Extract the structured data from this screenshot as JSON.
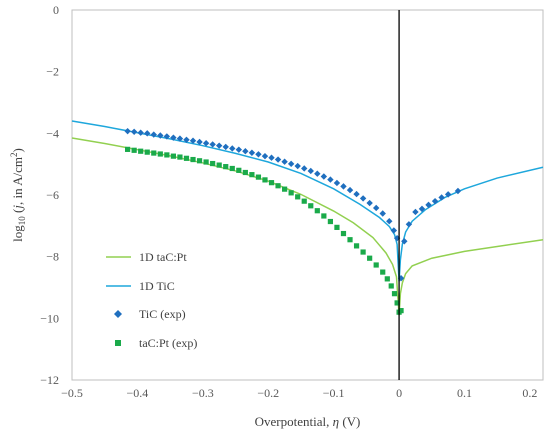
{
  "chart_data": {
    "type": "line",
    "xlabel": "Overpotential, η (V)",
    "xlabel_parts": {
      "pre": "Overpotential, ",
      "sym": "η",
      "post": " (V)"
    },
    "ylabel_parts": {
      "log": "log",
      "sub": "10",
      "open": " (",
      "j": "j",
      "mid": ", in A/cm",
      "sup": "2",
      "close": ")"
    },
    "xlim": [
      -0.5,
      0.22
    ],
    "ylim": [
      -12,
      0
    ],
    "xticks": [
      -0.5,
      -0.4,
      -0.3,
      -0.2,
      -0.1,
      0,
      0.1,
      0.2
    ],
    "xtick_labels": [
      "−0.5",
      "−0.4",
      "−0.3",
      "−0.2",
      "−0.1",
      "0",
      "0.1",
      "0.2"
    ],
    "yticks": [
      0,
      -2,
      -4,
      -6,
      -8,
      -10,
      -12
    ],
    "ytick_labels": [
      "0",
      "−2",
      "−4",
      "−6",
      "−8",
      "−10",
      "−12"
    ],
    "grid": false,
    "legend_position": "bottom-left",
    "colors": {
      "tic_line": "#1ea7dc",
      "tac_line": "#92d050",
      "tic_marker": "#1f6fbf",
      "tac_marker": "#1aaa4a",
      "axis": "#000000"
    },
    "series": [
      {
        "name": "1D taC:Pt",
        "style": "line",
        "x": [
          -0.5,
          -0.45,
          -0.4,
          -0.35,
          -0.3,
          -0.25,
          -0.2,
          -0.15,
          -0.1,
          -0.07,
          -0.04,
          -0.02,
          -0.01,
          -0.004,
          0,
          0.002,
          0.005,
          0.01,
          0.02,
          0.05,
          0.1,
          0.15,
          0.22
        ],
        "y": [
          -4.15,
          -4.33,
          -4.53,
          -4.73,
          -4.96,
          -5.22,
          -5.55,
          -5.98,
          -6.52,
          -6.9,
          -7.38,
          -7.88,
          -8.25,
          -8.65,
          -9.9,
          -9.2,
          -8.85,
          -8.55,
          -8.3,
          -8.05,
          -7.83,
          -7.67,
          -7.45
        ]
      },
      {
        "name": "1D TiC",
        "style": "line",
        "x": [
          -0.5,
          -0.45,
          -0.4,
          -0.35,
          -0.3,
          -0.25,
          -0.2,
          -0.15,
          -0.1,
          -0.06,
          -0.03,
          -0.015,
          -0.007,
          -0.003,
          0,
          0.002,
          0.005,
          0.01,
          0.02,
          0.04,
          0.07,
          0.1,
          0.15,
          0.22
        ],
        "y": [
          -3.6,
          -3.78,
          -3.98,
          -4.18,
          -4.4,
          -4.65,
          -4.93,
          -5.3,
          -5.8,
          -6.3,
          -6.73,
          -7.02,
          -7.28,
          -7.6,
          -8.8,
          -8.1,
          -7.6,
          -7.2,
          -6.85,
          -6.48,
          -6.08,
          -5.8,
          -5.45,
          -5.1
        ]
      },
      {
        "name": "TiC (exp)",
        "style": "marker-diamond",
        "x": [
          -0.415,
          -0.405,
          -0.395,
          -0.385,
          -0.375,
          -0.365,
          -0.355,
          -0.345,
          -0.335,
          -0.325,
          -0.315,
          -0.305,
          -0.295,
          -0.285,
          -0.275,
          -0.265,
          -0.255,
          -0.245,
          -0.235,
          -0.225,
          -0.215,
          -0.205,
          -0.195,
          -0.185,
          -0.175,
          -0.165,
          -0.155,
          -0.145,
          -0.135,
          -0.125,
          -0.115,
          -0.105,
          -0.095,
          -0.085,
          -0.075,
          -0.065,
          -0.055,
          -0.045,
          -0.035,
          -0.025,
          -0.015,
          -0.008,
          -0.003,
          0.003,
          0.008,
          0.015,
          0.025,
          0.035,
          0.045,
          0.055,
          0.065,
          0.075,
          0.09
        ],
        "y": [
          -3.93,
          -3.95,
          -3.98,
          -4.0,
          -4.04,
          -4.07,
          -4.1,
          -4.14,
          -4.17,
          -4.21,
          -4.24,
          -4.28,
          -4.32,
          -4.36,
          -4.4,
          -4.44,
          -4.49,
          -4.53,
          -4.58,
          -4.63,
          -4.68,
          -4.74,
          -4.79,
          -4.85,
          -4.92,
          -4.99,
          -5.06,
          -5.14,
          -5.22,
          -5.31,
          -5.4,
          -5.5,
          -5.61,
          -5.72,
          -5.84,
          -5.97,
          -6.11,
          -6.26,
          -6.42,
          -6.6,
          -6.85,
          -7.15,
          -7.4,
          -8.7,
          -7.5,
          -6.95,
          -6.55,
          -6.45,
          -6.32,
          -6.2,
          -6.08,
          -5.98,
          -5.87
        ]
      },
      {
        "name": "taC:Pt (exp)",
        "style": "marker-square",
        "x": [
          -0.415,
          -0.405,
          -0.395,
          -0.385,
          -0.375,
          -0.365,
          -0.355,
          -0.345,
          -0.335,
          -0.325,
          -0.315,
          -0.305,
          -0.295,
          -0.285,
          -0.275,
          -0.265,
          -0.255,
          -0.245,
          -0.235,
          -0.225,
          -0.215,
          -0.205,
          -0.195,
          -0.185,
          -0.175,
          -0.165,
          -0.155,
          -0.145,
          -0.135,
          -0.125,
          -0.115,
          -0.105,
          -0.095,
          -0.085,
          -0.075,
          -0.065,
          -0.055,
          -0.045,
          -0.035,
          -0.025,
          -0.018,
          -0.012,
          -0.007,
          -0.003,
          0.0,
          0.003
        ],
        "y": [
          -4.52,
          -4.55,
          -4.58,
          -4.61,
          -4.64,
          -4.67,
          -4.7,
          -4.74,
          -4.77,
          -4.81,
          -4.85,
          -4.89,
          -4.93,
          -4.98,
          -5.03,
          -5.08,
          -5.14,
          -5.2,
          -5.27,
          -5.34,
          -5.42,
          -5.51,
          -5.6,
          -5.7,
          -5.81,
          -5.93,
          -6.06,
          -6.2,
          -6.35,
          -6.51,
          -6.68,
          -6.86,
          -7.05,
          -7.25,
          -7.45,
          -7.65,
          -7.85,
          -8.05,
          -8.27,
          -8.5,
          -8.72,
          -8.95,
          -9.2,
          -9.5,
          -9.8,
          -9.75
        ]
      }
    ]
  }
}
